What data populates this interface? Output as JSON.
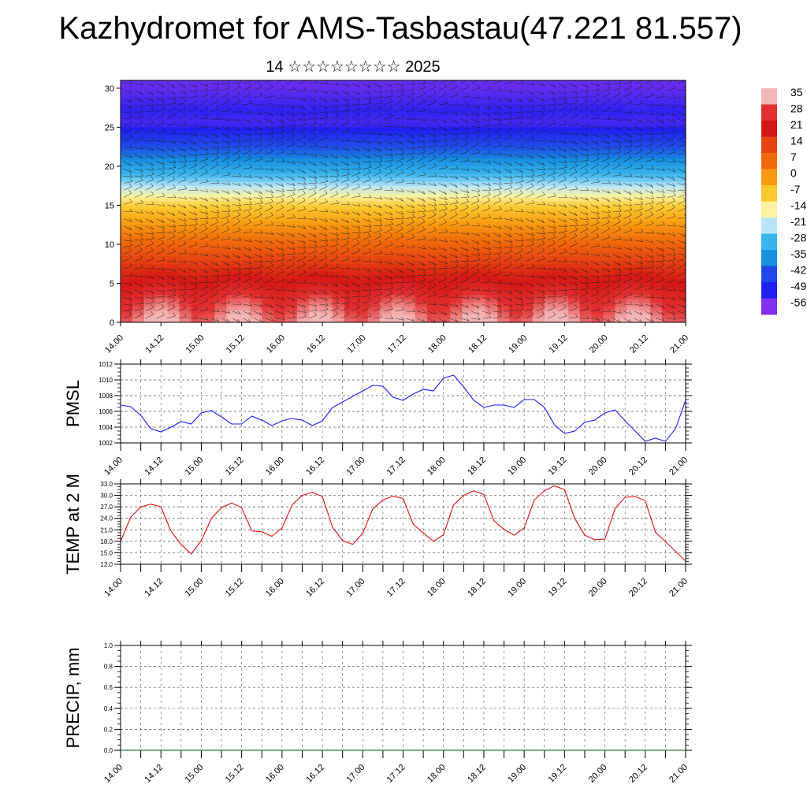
{
  "header": {
    "title": "Kazhydromet for AMS-Tasbastau(47.221 81.557)",
    "subtitle": "14 ☆☆☆☆☆☆☆☆ 2025"
  },
  "colors": {
    "pmsl_line": "#1a1aff",
    "temp_line": "#e01010",
    "precip_line": "#006400"
  },
  "chart_data": [
    {
      "type": "heatmap",
      "name_hint": "vertical temperature cross-section with wind barbs",
      "x_ticks": [
        "14.00",
        "14.12",
        "15.00",
        "15.12",
        "16.00",
        "16.12",
        "17.00",
        "17.12",
        "18.00",
        "18.12",
        "19.00",
        "19.12",
        "20.00",
        "20.12",
        "21.00"
      ],
      "y_ticks": [
        0,
        5,
        10,
        15,
        20,
        25,
        30
      ],
      "ylim": [
        0,
        31
      ],
      "colorbar_labels": [
        "35",
        "28",
        "21",
        "14",
        "7",
        "0",
        "-7",
        "-14",
        "-21",
        "-28",
        "-35",
        "-42",
        "-49",
        "-56"
      ],
      "colorbar_colors": [
        "#f4b6b6",
        "#e23030",
        "#d41616",
        "#e64412",
        "#f06a0c",
        "#f79a10",
        "#fcc830",
        "#fcf2a0",
        "#b8e6f8",
        "#38b4ec",
        "#1890e0",
        "#2048e8",
        "#2020f0",
        "#8030ee"
      ],
      "profile_levels": [
        0,
        3,
        8,
        12,
        15,
        16.5,
        18,
        20,
        22,
        24,
        25.5,
        27,
        30
      ],
      "profile_temps": [
        34,
        28,
        14,
        2,
        -8,
        -16,
        -24,
        -32,
        -40,
        -46,
        -52,
        -50,
        -54
      ]
    },
    {
      "type": "line",
      "ylabel": "PMSL",
      "x_ticks": [
        "14.00",
        "14.12",
        "15.00",
        "15.12",
        "16.00",
        "16.12",
        "17.00",
        "17.12",
        "18.00",
        "18.12",
        "19.00",
        "19.12",
        "20.00",
        "20.12",
        "21.00"
      ],
      "y_ticks": [
        1002,
        1004,
        1006,
        1008,
        1010,
        1012
      ],
      "ylim": [
        1002,
        1012
      ],
      "x": [
        0,
        3,
        6,
        9,
        12,
        15,
        18,
        21,
        24,
        27,
        30,
        33,
        36,
        39,
        42,
        45,
        48,
        51,
        54,
        57,
        60,
        63,
        66,
        69,
        72,
        75,
        78,
        81,
        84,
        87,
        90,
        93,
        96,
        99,
        102,
        105,
        108,
        111,
        114,
        117,
        120,
        123,
        126,
        129,
        132,
        135,
        138,
        141,
        144,
        147,
        150,
        153,
        156,
        159,
        162,
        165,
        168
      ],
      "values": [
        1006.8,
        1006.6,
        1005.5,
        1003.8,
        1003.4,
        1004.0,
        1004.7,
        1004.4,
        1005.8,
        1006.1,
        1005.3,
        1004.4,
        1004.4,
        1005.4,
        1004.9,
        1004.2,
        1004.8,
        1005.1,
        1004.9,
        1004.2,
        1004.8,
        1006.5,
        1007.2,
        1007.9,
        1008.6,
        1009.3,
        1009.2,
        1007.8,
        1007.4,
        1008.2,
        1008.8,
        1008.6,
        1010.2,
        1010.6,
        1009.1,
        1007.4,
        1006.5,
        1006.8,
        1006.8,
        1006.5,
        1007.5,
        1007.5,
        1006.5,
        1004.3,
        1003.2,
        1003.5,
        1004.6,
        1004.9,
        1005.8,
        1006.2,
        1004.8,
        1003.5,
        1002.2,
        1002.6,
        1002.2,
        1003.8,
        1007.4
      ]
    },
    {
      "type": "line",
      "ylabel": "TEMP at 2 M",
      "x_ticks": [
        "14.00",
        "14.12",
        "15.00",
        "15.12",
        "16.00",
        "16.12",
        "17.00",
        "17.12",
        "18.00",
        "18.12",
        "19.00",
        "19.12",
        "20.00",
        "20.12",
        "21.00"
      ],
      "y_ticks": [
        12.0,
        15.0,
        18.0,
        21.0,
        24.0,
        27.0,
        30.0,
        33.0
      ],
      "ylim": [
        12,
        33
      ],
      "x": [
        0,
        3,
        6,
        9,
        12,
        15,
        18,
        21,
        24,
        27,
        30,
        33,
        36,
        39,
        42,
        45,
        48,
        51,
        54,
        57,
        60,
        63,
        66,
        69,
        72,
        75,
        78,
        81,
        84,
        87,
        90,
        93,
        96,
        99,
        102,
        105,
        108,
        111,
        114,
        117,
        120,
        123,
        126,
        129,
        132,
        135,
        138,
        141,
        144,
        147,
        150,
        153,
        156,
        159,
        162,
        165,
        168
      ],
      "values": [
        18.0,
        24.3,
        27.0,
        27.7,
        27.0,
        20.6,
        17.2,
        14.7,
        18.2,
        24.0,
        26.8,
        28.0,
        26.8,
        20.7,
        20.5,
        19.3,
        21.5,
        27.5,
        30.0,
        30.8,
        29.7,
        21.7,
        18.2,
        17.2,
        20.1,
        26.5,
        28.8,
        29.8,
        29.2,
        22.5,
        20.2,
        18.0,
        19.7,
        27.5,
        30.0,
        31.2,
        30.2,
        23.4,
        21.1,
        19.6,
        21.5,
        28.8,
        31.2,
        32.5,
        31.5,
        24.0,
        19.6,
        18.4,
        18.6,
        26.5,
        29.5,
        29.7,
        28.6,
        20.4,
        17.9,
        15.4,
        12.8
      ]
    },
    {
      "type": "line",
      "ylabel": "PRECIP, mm",
      "x_ticks": [
        "14.00",
        "14.12",
        "15.00",
        "15.12",
        "16.00",
        "16.12",
        "17.00",
        "17.12",
        "18.00",
        "18.12",
        "19.00",
        "19.12",
        "20.00",
        "20.12",
        "21.00"
      ],
      "y_ticks": [
        0.0,
        0.2,
        0.4,
        0.6,
        0.8,
        1.0
      ],
      "ylim": [
        0,
        1
      ],
      "x": [
        0,
        168
      ],
      "values": [
        0.0,
        0.0
      ]
    }
  ]
}
